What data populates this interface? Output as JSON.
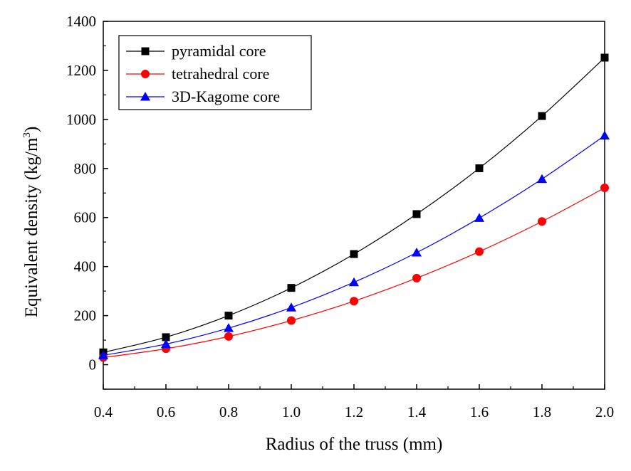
{
  "chart_data": {
    "type": "line",
    "title": "",
    "xlabel": "Radius of the truss (mm)",
    "ylabel_main": "Equivalent density (kg/m",
    "ylabel_sup": "3",
    "ylabel_close": ")",
    "xlim": [
      0.4,
      2.0
    ],
    "ylim": [
      -100,
      1400
    ],
    "xticks": [
      "0.4",
      "0.6",
      "0.8",
      "1.0",
      "1.2",
      "1.4",
      "1.6",
      "1.8",
      "2.0"
    ],
    "yticks": [
      "0",
      "200",
      "400",
      "600",
      "800",
      "1000",
      "1200",
      "1400"
    ],
    "x": [
      0.4,
      0.6,
      0.8,
      1.0,
      1.2,
      1.4,
      1.6,
      1.8,
      2.0
    ],
    "grid": false,
    "legend_position": "top-left",
    "series": [
      {
        "name": "pyramidal core",
        "color": "#000000",
        "marker": "square",
        "values": [
          50,
          112,
          200,
          313,
          451,
          614,
          801,
          1014,
          1252
        ]
      },
      {
        "name": "tetrahedral core",
        "color": "#ff0000",
        "marker": "circle",
        "values": [
          29,
          65,
          115,
          180,
          259,
          353,
          461,
          584,
          721
        ]
      },
      {
        "name": "3D-Kagome core",
        "color": "#0000ff",
        "marker": "triangle",
        "values": [
          38,
          84,
          149,
          233,
          336,
          457,
          598,
          757,
          934
        ]
      }
    ]
  }
}
